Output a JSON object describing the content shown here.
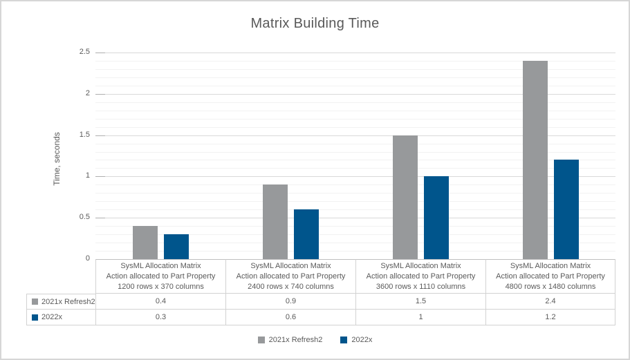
{
  "chart_data": {
    "type": "bar",
    "title": "Matrix Building Time",
    "ylabel": "Time, seconds",
    "ylim": [
      0,
      2.5
    ],
    "major_unit": 0.5,
    "minor_unit": 0.1,
    "grid": true,
    "legend_position": "bottom",
    "ytick_values": [
      0,
      0.5,
      1,
      1.5,
      2,
      2.5
    ],
    "ytick_labels": [
      "0",
      "0.5",
      "1",
      "1.5",
      "2",
      "2.5"
    ],
    "categories": [
      {
        "lines": [
          "SysML Allocation Matrix",
          "Action allocated to Part Property",
          "1200 rows x 370 columns"
        ]
      },
      {
        "lines": [
          "SysML Allocation Matrix",
          "Action allocated to Part Property",
          "2400 rows x 740 columns"
        ]
      },
      {
        "lines": [
          "SysML Allocation Matrix",
          "Action allocated to Part Property",
          "3600 rows x 1110 columns"
        ]
      },
      {
        "lines": [
          "SysML Allocation Matrix",
          "Action allocated to Part Property",
          "4800 rows x 1480 columns"
        ]
      }
    ],
    "series": [
      {
        "name": "2021x Refresh2",
        "color": "#97999B",
        "values": [
          0.4,
          0.9,
          1.5,
          2.4
        ],
        "display_values": [
          "0.4",
          "0.9",
          "1.5",
          "2.4"
        ]
      },
      {
        "name": "2022x",
        "color": "#00558C",
        "values": [
          0.3,
          0.6,
          1,
          1.2
        ],
        "display_values": [
          "0.3",
          "0.6",
          "1",
          "1.2"
        ]
      }
    ]
  },
  "colors": {
    "title_text": "#595959",
    "axis_text": "#595959",
    "table_text": "#595959",
    "grid_major": "#D9D9D9",
    "grid_minor": "#F2F2F2",
    "table_border": "#D2D2D2",
    "frame_border": "#D6D6D6"
  }
}
